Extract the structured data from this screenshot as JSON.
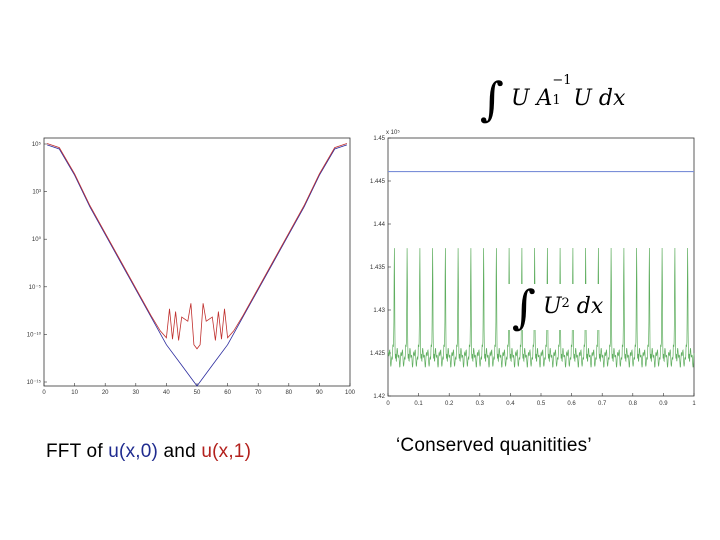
{
  "captions": {
    "left_prefix": "FFT of ",
    "left_u0": "u(x,0)",
    "left_and": " and ",
    "left_u1": "u(x,1)",
    "right": "‘Conserved quanitities’"
  },
  "formulas": {
    "top_integral": "∫",
    "top_expr": "U A",
    "top_sub": "1",
    "top_sup": "−1",
    "top_tail": "U  dx",
    "mid_integral": "∫",
    "mid_expr": "U",
    "mid_sup": "2",
    "mid_tail": " dx"
  },
  "colors": {
    "blue": "#2b2b9e",
    "red": "#c0302e",
    "u0_text": "#1f2b8f",
    "u1_text": "#b3201c",
    "conserved_blue": "#7b8fd8",
    "conserved_green": "#5fae5f",
    "axis": "#333333"
  },
  "chart_data": [
    {
      "type": "line",
      "yscale": "log",
      "xlim": [
        0,
        100
      ],
      "ylim_exp": [
        -15,
        3
      ],
      "x_ticks": [
        "0",
        "10",
        "20",
        "30",
        "40",
        "50",
        "60",
        "70",
        "80",
        "90",
        "100"
      ],
      "y_ticks": [
        "10⁵",
        "10³",
        "10⁰",
        "10⁻⁵",
        "10⁻¹⁰",
        "10⁻¹⁵"
      ],
      "series": [
        {
          "color": "blue",
          "points_log10": [
            [
              1,
              2.5
            ],
            [
              5,
              2.2
            ],
            [
              10,
              0.3
            ],
            [
              15,
              -2
            ],
            [
              20,
              -4
            ],
            [
              25,
              -6
            ],
            [
              30,
              -8
            ],
            [
              35,
              -10
            ],
            [
              40,
              -12
            ],
            [
              45,
              -13.5
            ],
            [
              50,
              -15
            ],
            [
              55,
              -13.5
            ],
            [
              60,
              -12
            ],
            [
              65,
              -10
            ],
            [
              70,
              -8
            ],
            [
              75,
              -6
            ],
            [
              80,
              -4
            ],
            [
              85,
              -2
            ],
            [
              90,
              0.3
            ],
            [
              95,
              2.2
            ],
            [
              99,
              2.5
            ]
          ]
        },
        {
          "color": "red",
          "points_log10": [
            [
              1,
              2.6
            ],
            [
              5,
              2.3
            ],
            [
              10,
              0.4
            ],
            [
              15,
              -1.9
            ],
            [
              20,
              -3.9
            ],
            [
              25,
              -5.9
            ],
            [
              30,
              -7.9
            ],
            [
              35,
              -9.9
            ],
            [
              38,
              -11
            ],
            [
              40,
              -11.5
            ],
            [
              41,
              -9.4
            ],
            [
              42,
              -11.6
            ],
            [
              43,
              -9.6
            ],
            [
              44,
              -11.7
            ],
            [
              45,
              -10
            ],
            [
              47,
              -10.3
            ],
            [
              48,
              -9
            ],
            [
              49,
              -12
            ],
            [
              50,
              -12.3
            ],
            [
              51,
              -12
            ],
            [
              52,
              -9
            ],
            [
              53,
              -10.3
            ],
            [
              55,
              -10
            ],
            [
              56,
              -11.7
            ],
            [
              57,
              -9.6
            ],
            [
              58,
              -11.6
            ],
            [
              59,
              -9.4
            ],
            [
              60,
              -11.5
            ],
            [
              62,
              -11
            ],
            [
              65,
              -9.9
            ],
            [
              70,
              -7.9
            ],
            [
              75,
              -5.9
            ],
            [
              80,
              -3.9
            ],
            [
              85,
              -1.9
            ],
            [
              90,
              0.4
            ],
            [
              95,
              2.3
            ],
            [
              99,
              2.6
            ]
          ]
        }
      ]
    },
    {
      "type": "line",
      "xlim": [
        0,
        1
      ],
      "ylim": [
        1.42,
        1.45
      ],
      "y_multiplier": "x 10⁵",
      "x_ticks": [
        "0",
        "0.1",
        "0.2",
        "0.3",
        "0.4",
        "0.5",
        "0.6",
        "0.7",
        "0.8",
        "0.9",
        "1"
      ],
      "y_ticks": [
        "1.45",
        "1.445",
        "1.44",
        "1.435",
        "1.43",
        "1.425",
        "1.42"
      ],
      "series": [
        {
          "color": "conserved_blue",
          "constant": 1.4461
        },
        {
          "color": "conserved_green",
          "baseline": 1.4245,
          "peak": 1.4377,
          "spikes": 24
        }
      ]
    }
  ]
}
